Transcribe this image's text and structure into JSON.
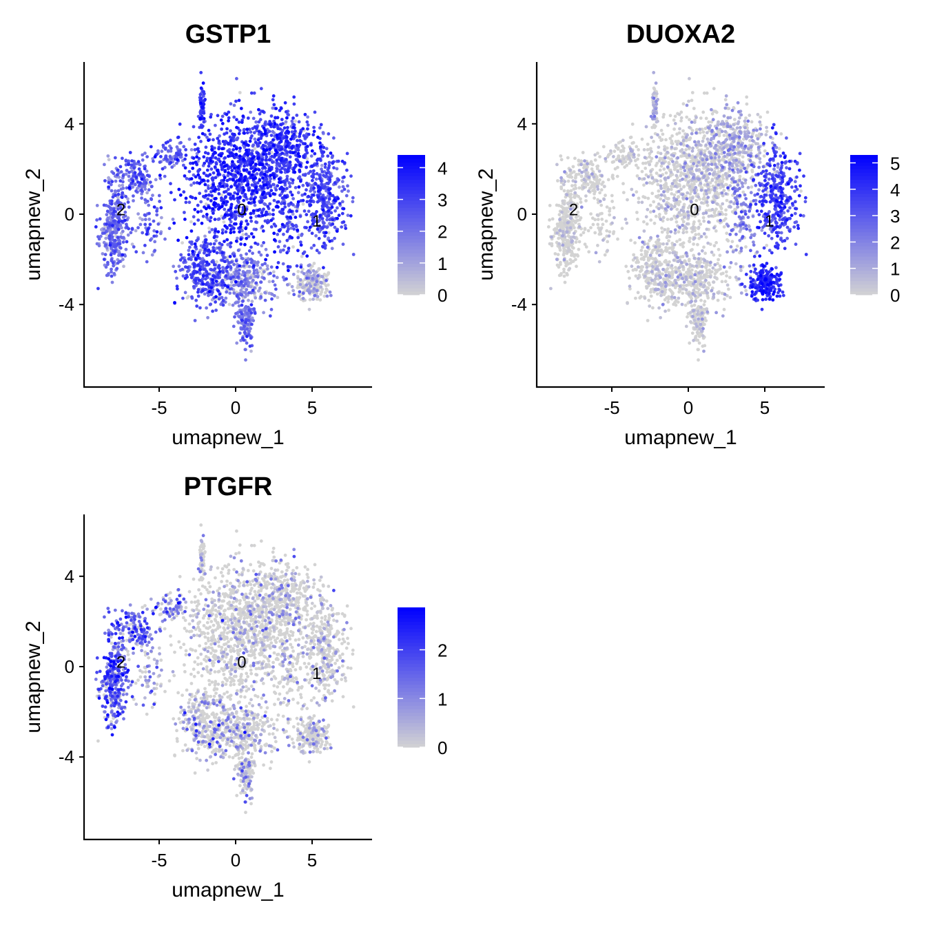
{
  "chart_data": {
    "type": "scatter",
    "xlabel": "umapnew_1",
    "ylabel": "umapnew_2",
    "xlim": [
      -9.9,
      8.9
    ],
    "ylim": [
      -7.65,
      6.7
    ],
    "x_ticks": [
      "-5",
      "0",
      "5"
    ],
    "x_tick_values": [
      -5,
      0,
      5
    ],
    "y_ticks": [
      "4",
      "0",
      "-4"
    ],
    "y_tick_values": [
      4,
      0,
      -4
    ],
    "low_color": "#d3d3d3",
    "high_color": "#0000ff",
    "cluster_labels": [
      {
        "label": "2",
        "x": -7.5,
        "y": 0.2
      },
      {
        "label": "0",
        "x": 0.4,
        "y": 0.2
      },
      {
        "label": "1",
        "x": 5.3,
        "y": -0.3
      }
    ],
    "regions": [
      {
        "cx": -8.0,
        "cy": -0.6,
        "sx": 0.45,
        "sy": 1.0,
        "n": 330,
        "expr": [
          2.0,
          0.05,
          1.6
        ]
      },
      {
        "cx": -6.6,
        "cy": 1.7,
        "sx": 0.7,
        "sy": 0.5,
        "n": 150,
        "expr": [
          2.3,
          0.05,
          1.5
        ]
      },
      {
        "cx": -4.2,
        "cy": 2.6,
        "sx": 0.7,
        "sy": 0.3,
        "n": 80,
        "expr": [
          2.3,
          0.05,
          1.0
        ]
      },
      {
        "cx": -5.6,
        "cy": -0.4,
        "sx": 0.4,
        "sy": 0.8,
        "n": 60,
        "expr": [
          2.2,
          0.05,
          0.9
        ]
      },
      {
        "cx": -2.2,
        "cy": 4.7,
        "sx": 0.12,
        "sy": 0.55,
        "n": 60,
        "expr": [
          3.2,
          0.8,
          0.2
        ]
      },
      {
        "cx": 0.3,
        "cy": 1.4,
        "sx": 1.7,
        "sy": 1.5,
        "n": 900,
        "expr": [
          3.3,
          0.3,
          0.15
        ]
      },
      {
        "cx": 2.9,
        "cy": 3.0,
        "sx": 1.2,
        "sy": 0.9,
        "n": 420,
        "expr": [
          3.1,
          1.0,
          0.2
        ]
      },
      {
        "cx": -2.0,
        "cy": -2.5,
        "sx": 0.9,
        "sy": 0.8,
        "n": 300,
        "expr": [
          2.7,
          0.1,
          0.5
        ]
      },
      {
        "cx": 0.6,
        "cy": -2.8,
        "sx": 1.0,
        "sy": 0.7,
        "n": 300,
        "expr": [
          1.6,
          0.2,
          0.4
        ]
      },
      {
        "cx": 5.8,
        "cy": 0.8,
        "sx": 0.7,
        "sy": 1.1,
        "n": 350,
        "expr": [
          2.8,
          3.5,
          0.2
        ]
      },
      {
        "cx": 3.4,
        "cy": 0.0,
        "sx": 0.5,
        "sy": 1.2,
        "n": 120,
        "expr": [
          2.8,
          2.0,
          0.2
        ]
      },
      {
        "cx": 5.0,
        "cy": -3.0,
        "sx": 0.55,
        "sy": 0.4,
        "n": 200,
        "expr": [
          0.8,
          4.2,
          0.1
        ]
      },
      {
        "cx": 0.6,
        "cy": -4.8,
        "sx": 0.3,
        "sy": 0.7,
        "n": 120,
        "expr": [
          2.0,
          0.05,
          0.5
        ]
      }
    ],
    "panels": [
      {
        "title": "GSTP1",
        "legend_ticks": [
          "0",
          "1",
          "2",
          "3",
          "4"
        ],
        "legend_values": [
          0,
          1,
          2,
          3,
          4
        ],
        "max": 4.4
      },
      {
        "title": "DUOXA2",
        "legend_ticks": [
          "0",
          "1",
          "2",
          "3",
          "4",
          "5"
        ],
        "legend_values": [
          0,
          1,
          2,
          3,
          4,
          5
        ],
        "max": 5.3
      },
      {
        "title": "PTGFR",
        "legend_ticks": [
          "0",
          "1",
          "2"
        ],
        "legend_values": [
          0,
          1,
          2
        ],
        "max": 2.87
      }
    ]
  }
}
